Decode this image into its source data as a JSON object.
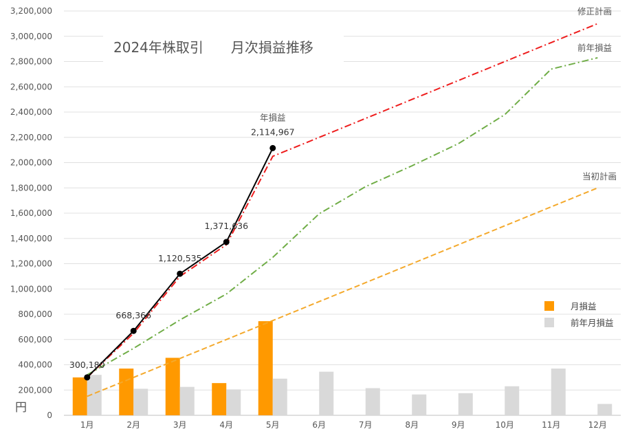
{
  "chart_data": {
    "type": "bar+line",
    "title": "2024年株取引　　月次損益推移",
    "ylabel": "円",
    "xlabel": "",
    "ylim": [
      0,
      3200000
    ],
    "grid": true,
    "y_ticks": [
      "0",
      "200,000",
      "400,000",
      "600,000",
      "800,000",
      "1,000,000",
      "1,200,000",
      "1,400,000",
      "1,600,000",
      "1,800,000",
      "2,000,000",
      "2,200,000",
      "2,400,000",
      "2,600,000",
      "2,800,000",
      "3,000,000",
      "3,200,000"
    ],
    "categories": [
      "1月",
      "2月",
      "3月",
      "4月",
      "5月",
      "6月",
      "7月",
      "8月",
      "9月",
      "10月",
      "11月",
      "12月"
    ],
    "bar_series": [
      {
        "name": "月損益",
        "color": "#ff9900",
        "values": [
          300000,
          370000,
          455000,
          255000,
          745000,
          null,
          null,
          null,
          null,
          null,
          null,
          null
        ]
      },
      {
        "name": "前年月損益",
        "color": "#d9d9d9",
        "values": [
          320000,
          210000,
          225000,
          205000,
          290000,
          345000,
          215000,
          165000,
          175000,
          230000,
          370000,
          90000
        ]
      }
    ],
    "line_series": [
      {
        "name": "年損益",
        "color": "#000000",
        "style": "solid",
        "markers": true,
        "values": [
          300180,
          668366,
          1120535,
          1371636,
          2114967,
          null,
          null,
          null,
          null,
          null,
          null,
          null
        ],
        "data_labels": [
          "300,180",
          "668,366",
          "1,120,535",
          "1,371,636",
          "2,114,967",
          null,
          null,
          null,
          null,
          null,
          null,
          null
        ]
      },
      {
        "name": "修正計画",
        "color": "#ee1c1c",
        "style": "dash-dot",
        "values": [
          300000,
          650000,
          1100000,
          1350000,
          2050000,
          2200000,
          2350000,
          2500000,
          2650000,
          2800000,
          2950000,
          3100000
        ]
      },
      {
        "name": "前年損益",
        "color": "#70ad47",
        "style": "dash-dot",
        "values": [
          320000,
          530000,
          755000,
          960000,
          1250000,
          1595000,
          1810000,
          1975000,
          2150000,
          2380000,
          2740000,
          2830000
        ]
      },
      {
        "name": "当初計画",
        "color": "#f4a92c",
        "style": "dashed",
        "values": [
          150000,
          300000,
          450000,
          600000,
          750000,
          900000,
          1050000,
          1200000,
          1350000,
          1500000,
          1650000,
          1800000
        ]
      }
    ],
    "legend": {
      "placement": "right",
      "items": [
        "月損益",
        "前年月損益"
      ]
    }
  }
}
